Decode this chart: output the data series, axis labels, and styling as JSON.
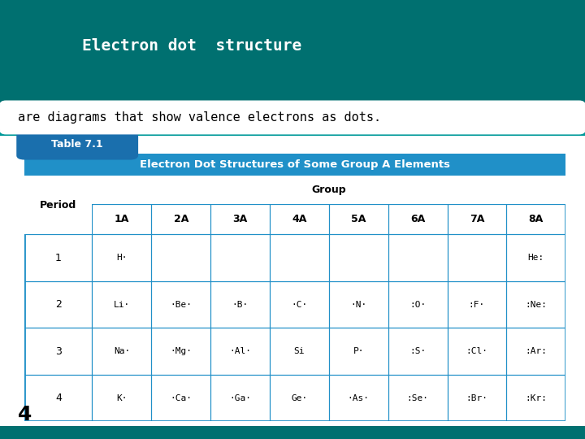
{
  "title_text": "Electron dot  structure",
  "subtitle_text": "are diagrams that show valence electrons as dots.",
  "table_title": "Electron Dot Structures of Some Group A Elements",
  "table_label": "Table 7.1",
  "teal_dark": "#007070",
  "teal_light": "#009999",
  "white": "#ffffff",
  "black": "#000000",
  "blue_header": "#2090c8",
  "blue_tab": "#1a6fad",
  "blue_border": "#2090c8",
  "page_number": "4",
  "groups": [
    "1A",
    "2A",
    "3A",
    "4A",
    "5A",
    "6A",
    "7A",
    "8A"
  ],
  "periods": [
    "1",
    "2",
    "3",
    "4"
  ],
  "cells": [
    [
      "H·",
      "",
      "",
      "",
      "",
      "",
      "",
      "He:"
    ],
    [
      "Li·",
      "·Be·",
      "·B·",
      "·C·",
      "·N·",
      ":O·",
      ":F·",
      ":Ne:"
    ],
    [
      "Na·",
      "·Mg·",
      "·Al·",
      "Si",
      "P·",
      ":S·",
      ":Cl·",
      ":Ar:"
    ],
    [
      "K·",
      "·Ca·",
      "·Ga·",
      "Ge·",
      "·As·",
      ":Se·",
      ":Br·",
      ":Kr:"
    ]
  ]
}
